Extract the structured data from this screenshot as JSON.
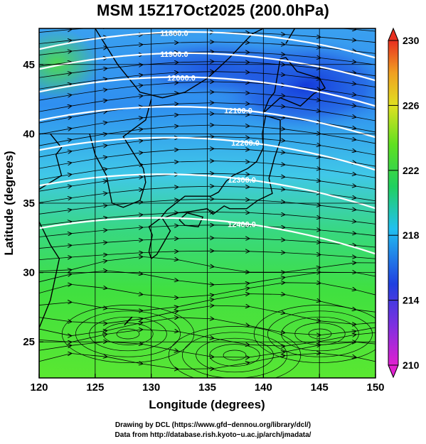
{
  "title": "MSM 15Z17Oct2025 (200.0hPa)",
  "map": {
    "x_axis": {
      "label": "Longitude (degrees)",
      "range": [
        120,
        150
      ],
      "ticks": [
        "120",
        "125",
        "130",
        "135",
        "140",
        "145",
        "150"
      ]
    },
    "y_axis": {
      "label": "Latitude  (degrees)",
      "range": [
        22.4,
        47.6
      ],
      "ticks": [
        "25",
        "30",
        "35",
        "40",
        "45"
      ]
    },
    "variable": "temperature (K), shaded",
    "contour_variable": "geopotential height (m)",
    "contour_labels": [
      "11800.0",
      "11900.0",
      "12000.0",
      "12100.0",
      "12200.0",
      "12300.0",
      "12400.0"
    ],
    "streamlines": "wind",
    "colors": {
      "contour": "#ffffff",
      "streamline": "#000000",
      "coastline": "#000000",
      "grid": "#000000"
    }
  },
  "colorbar": {
    "min": 210,
    "max": 230,
    "tick_labels": [
      "230",
      "226",
      "222",
      "218",
      "214",
      "210"
    ],
    "colors": [
      "#e020d0",
      "#2040e0",
      "#20c0f0",
      "#20d060",
      "#60e020",
      "#e0e020",
      "#f0a020",
      "#e83020"
    ]
  },
  "credits": {
    "line1": "Drawing by DCL (https://www.gfd−dennou.org/library/dcl/)",
    "line2": "Data from http://database.rish.kyoto−u.ac.jp/arch/jmadata/"
  }
}
